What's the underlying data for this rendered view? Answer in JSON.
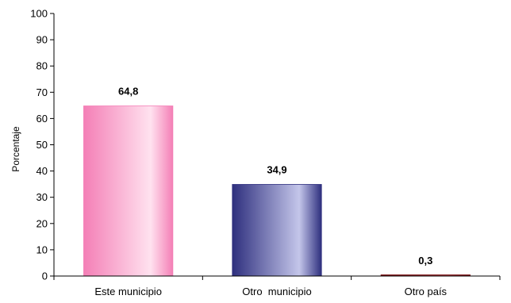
{
  "chart_data": {
    "type": "bar",
    "ylabel": "Porcentaje",
    "xlabel": "",
    "ylim": [
      0,
      100
    ],
    "yticks": [
      0,
      10,
      20,
      30,
      40,
      50,
      60,
      70,
      80,
      90,
      100
    ],
    "categories": [
      "Este municipio",
      "Otro  municipio",
      "Otro país"
    ],
    "values": [
      64.8,
      34.9,
      0.3
    ],
    "value_labels": [
      "64,8",
      "34,9",
      "0,3"
    ],
    "bar_colors": [
      {
        "dark": "#f47fb6",
        "light": "#ffe2ef"
      },
      {
        "dark": "#2e2f7e",
        "light": "#c4c6ea"
      },
      {
        "dark": "#7a0f12",
        "light": "#b54045"
      }
    ],
    "grid": false,
    "legend": "none"
  }
}
